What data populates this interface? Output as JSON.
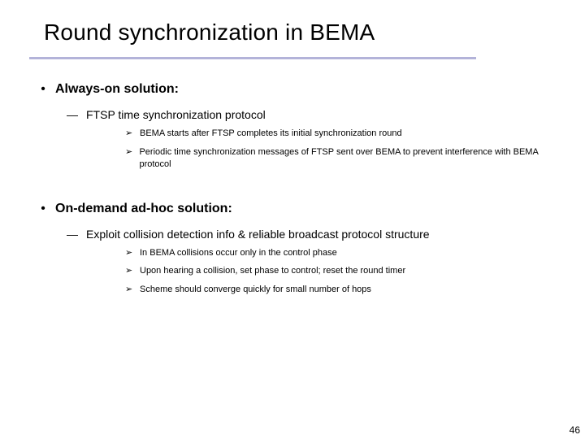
{
  "title": "Round synchronization in BEMA",
  "title_color": "#000000",
  "rule_color": "#b3b3d9",
  "background_color": "#ffffff",
  "level1_bullet_char": "•",
  "level2_bullet_char": "—",
  "level3_bullet_char": "➢",
  "fontsizes": {
    "title": 28,
    "lvl1": 16,
    "lvl2": 14,
    "lvl3": 11,
    "pagenum": 12
  },
  "sections": [
    {
      "heading": "Always-on solution:",
      "items": [
        {
          "text": "FTSP time synchronization protocol",
          "subitems": [
            "BEMA starts after FTSP completes its initial synchronization round",
            "Periodic time synchronization messages of FTSP sent over BEMA to prevent interference with BEMA protocol"
          ]
        }
      ]
    },
    {
      "heading": "On-demand ad-hoc solution:",
      "items": [
        {
          "text": "Exploit collision detection info & reliable broadcast protocol structure",
          "subitems": [
            "In BEMA collisions occur only in the control phase",
            "Upon hearing a collision, set phase to control; reset the round timer",
            "Scheme should converge quickly for small number of hops"
          ]
        }
      ]
    }
  ],
  "page_number": "46"
}
